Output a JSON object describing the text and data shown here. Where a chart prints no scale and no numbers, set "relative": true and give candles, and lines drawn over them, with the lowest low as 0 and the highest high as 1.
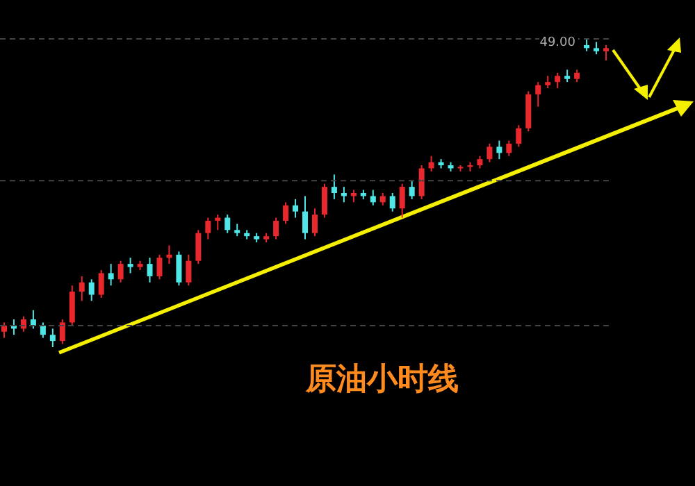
{
  "chart_data": {
    "type": "candlestick",
    "title": "原油小时线",
    "relative": true,
    "tick_labels": false,
    "legend": false,
    "ref_lines": [
      {
        "axis": "y",
        "value": 1,
        "color": "#444444",
        "line_style": "dashed"
      },
      {
        "axis": "y",
        "value": 0.54,
        "color": "#444444",
        "line_style": "dashed"
      },
      {
        "axis": "y",
        "value": 0.07,
        "color": "#444444",
        "line_style": "dashed"
      }
    ],
    "annotations": [
      "49.00"
    ],
    "categories": [
      null,
      null,
      null,
      null,
      null,
      null,
      null,
      null,
      null,
      null,
      null,
      null,
      null,
      null,
      null,
      null,
      null,
      null,
      null,
      null,
      null,
      null,
      null,
      null,
      null,
      null,
      null,
      null,
      null,
      null,
      null,
      null,
      null,
      null,
      null,
      null,
      null,
      null,
      null,
      null,
      null,
      null,
      null,
      null,
      null,
      null,
      null,
      null,
      null,
      null,
      null,
      null,
      null,
      null,
      null,
      null,
      null,
      null,
      null,
      null,
      null,
      null,
      null
    ],
    "ohlc": [
      [
        0.05,
        0.08,
        0.03,
        0.07
      ],
      [
        0.07,
        0.09,
        0.04,
        0.06
      ],
      [
        0.06,
        0.1,
        0.05,
        0.09
      ],
      [
        0.09,
        0.12,
        0.06,
        0.07
      ],
      [
        0.07,
        0.08,
        0.03,
        0.04
      ],
      [
        0.04,
        0.06,
        0.0,
        0.02
      ],
      [
        0.02,
        0.09,
        0.01,
        0.08
      ],
      [
        0.08,
        0.2,
        0.07,
        0.18
      ],
      [
        0.18,
        0.23,
        0.15,
        0.21
      ],
      [
        0.21,
        0.22,
        0.15,
        0.17
      ],
      [
        0.17,
        0.25,
        0.16,
        0.24
      ],
      [
        0.24,
        0.27,
        0.2,
        0.22
      ],
      [
        0.22,
        0.28,
        0.21,
        0.27
      ],
      [
        0.27,
        0.29,
        0.24,
        0.26
      ],
      [
        0.26,
        0.28,
        0.25,
        0.27
      ],
      [
        0.27,
        0.29,
        0.21,
        0.23
      ],
      [
        0.23,
        0.3,
        0.22,
        0.29
      ],
      [
        0.29,
        0.33,
        0.27,
        0.3
      ],
      [
        0.3,
        0.31,
        0.2,
        0.21
      ],
      [
        0.21,
        0.3,
        0.2,
        0.28
      ],
      [
        0.28,
        0.38,
        0.27,
        0.37
      ],
      [
        0.37,
        0.42,
        0.35,
        0.41
      ],
      [
        0.41,
        0.43,
        0.38,
        0.42
      ],
      [
        0.42,
        0.43,
        0.37,
        0.38
      ],
      [
        0.38,
        0.4,
        0.36,
        0.37
      ],
      [
        0.37,
        0.38,
        0.35,
        0.36
      ],
      [
        0.36,
        0.37,
        0.34,
        0.35
      ],
      [
        0.35,
        0.37,
        0.34,
        0.36
      ],
      [
        0.36,
        0.42,
        0.35,
        0.41
      ],
      [
        0.41,
        0.47,
        0.4,
        0.46
      ],
      [
        0.46,
        0.48,
        0.42,
        0.44
      ],
      [
        0.44,
        0.49,
        0.35,
        0.37
      ],
      [
        0.37,
        0.45,
        0.36,
        0.43
      ],
      [
        0.43,
        0.53,
        0.42,
        0.52
      ],
      [
        0.52,
        0.56,
        0.48,
        0.5
      ],
      [
        0.5,
        0.52,
        0.47,
        0.49
      ],
      [
        0.49,
        0.51,
        0.47,
        0.5
      ],
      [
        0.5,
        0.51,
        0.48,
        0.49
      ],
      [
        0.49,
        0.51,
        0.46,
        0.47
      ],
      [
        0.47,
        0.5,
        0.46,
        0.49
      ],
      [
        0.49,
        0.5,
        0.44,
        0.45
      ],
      [
        0.45,
        0.53,
        0.42,
        0.52
      ],
      [
        0.52,
        0.54,
        0.48,
        0.49
      ],
      [
        0.49,
        0.59,
        0.48,
        0.58
      ],
      [
        0.58,
        0.62,
        0.57,
        0.6
      ],
      [
        0.6,
        0.61,
        0.58,
        0.59
      ],
      [
        0.59,
        0.6,
        0.57,
        0.58
      ],
      [
        0.58,
        0.59,
        0.57,
        0.585
      ],
      [
        0.585,
        0.6,
        0.57,
        0.59
      ],
      [
        0.59,
        0.62,
        0.58,
        0.61
      ],
      [
        0.61,
        0.66,
        0.6,
        0.65
      ],
      [
        0.65,
        0.67,
        0.61,
        0.63
      ],
      [
        0.63,
        0.67,
        0.62,
        0.66
      ],
      [
        0.66,
        0.72,
        0.65,
        0.71
      ],
      [
        0.71,
        0.83,
        0.7,
        0.82
      ],
      [
        0.82,
        0.86,
        0.78,
        0.85
      ],
      [
        0.85,
        0.88,
        0.84,
        0.86
      ],
      [
        0.86,
        0.89,
        0.84,
        0.88
      ],
      [
        0.88,
        0.9,
        0.86,
        0.87
      ],
      [
        0.87,
        0.9,
        0.86,
        0.89
      ],
      [
        0.98,
        1,
        0.96,
        0.97
      ],
      [
        0.97,
        0.99,
        0.95,
        0.96
      ],
      [
        0.96,
        0.98,
        0.93,
        0.97
      ]
    ],
    "colors": [
      "#e8282d",
      "#4ee6e6",
      "#e8282d",
      "#4ee6e6",
      "#4ee6e6",
      "#4ee6e6",
      "#e8282d",
      "#e8282d",
      "#e8282d",
      "#4ee6e6",
      "#e8282d",
      "#4ee6e6",
      "#e8282d",
      "#4ee6e6",
      "#e8282d",
      "#4ee6e6",
      "#e8282d",
      "#e8282d",
      "#4ee6e6",
      "#e8282d",
      "#e8282d",
      "#e8282d",
      "#e8282d",
      "#4ee6e6",
      "#4ee6e6",
      "#4ee6e6",
      "#4ee6e6",
      "#e8282d",
      "#e8282d",
      "#e8282d",
      "#4ee6e6",
      "#4ee6e6",
      "#e8282d",
      "#e8282d",
      "#4ee6e6",
      "#4ee6e6",
      "#e8282d",
      "#4ee6e6",
      "#4ee6e6",
      "#e8282d",
      "#4ee6e6",
      "#e8282d",
      "#4ee6e6",
      "#e8282d",
      "#e8282d",
      "#4ee6e6",
      "#4ee6e6",
      "#e8282d",
      "#e8282d",
      "#e8282d",
      "#e8282d",
      "#4ee6e6",
      "#e8282d",
      "#e8282d",
      "#e8282d",
      "#e8282d",
      "#e8282d",
      "#e8282d",
      "#4ee6e6",
      "#e8282d",
      "#4ee6e6",
      "#4ee6e6",
      "#e8282d"
    ]
  }
}
